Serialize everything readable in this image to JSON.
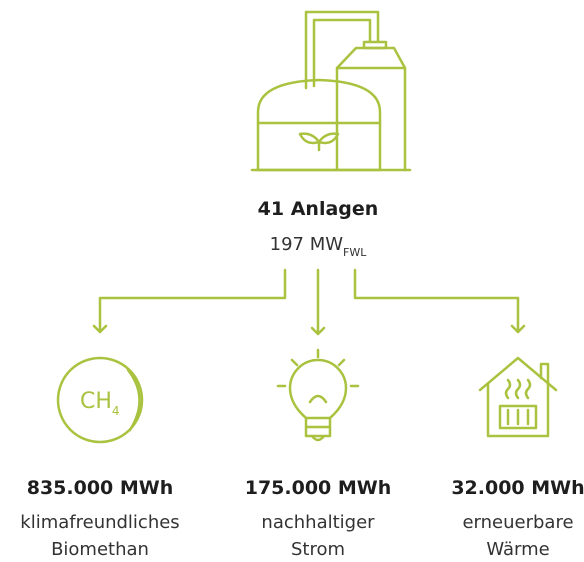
{
  "plant": {
    "title": "41 Anlagen",
    "capacity": "197 MW",
    "capacity_subscript": "FWL"
  },
  "outputs": [
    {
      "icon_text": "CH",
      "icon_subscript": "4",
      "value": "835.000 MWh",
      "lines": [
        "klimafreundliches",
        "Biomethan"
      ]
    },
    {
      "value": "175.000 MWh",
      "lines": [
        "nachhaltiger",
        "Strom"
      ]
    },
    {
      "value": "32.000 MWh",
      "lines": [
        "erneuerbare",
        "Wärme"
      ]
    }
  ]
}
